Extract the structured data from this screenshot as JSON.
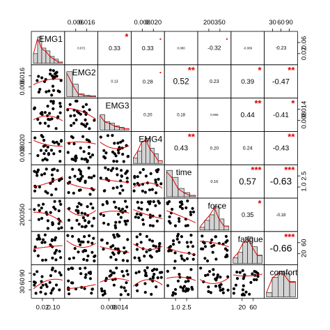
{
  "chart_data": {
    "type": "scatter-matrix",
    "variables": [
      "EMG1",
      "EMG2",
      "EMG3",
      "EMG4",
      "time",
      "force",
      "fatigue",
      "comfort"
    ],
    "top_axis": [
      {
        "var": 1,
        "ticks": [
          "0.006",
          "0.016"
        ],
        "side": "top"
      },
      {
        "var": 3,
        "ticks": [
          "0.008",
          "0.020"
        ],
        "side": "top"
      },
      {
        "var": 5,
        "ticks": [
          "200",
          "350"
        ],
        "side": "top"
      },
      {
        "var": 7,
        "ticks": [
          "30",
          "60",
          "90"
        ],
        "side": "top"
      }
    ],
    "bottom_axis": [
      {
        "var": 0,
        "ticks": [
          "0.02",
          "0.10"
        ]
      },
      {
        "var": 2,
        "ticks": [
          "0.008",
          "0.014"
        ]
      },
      {
        "var": 4,
        "ticks": [
          "1.0",
          "2.5"
        ]
      },
      {
        "var": 6,
        "ticks": [
          "20",
          "60"
        ]
      }
    ],
    "left_axis": [
      {
        "var": 1,
        "ticks": [
          "0.006",
          "0.016"
        ]
      },
      {
        "var": 3,
        "ticks": [
          "0.008",
          "0.020"
        ]
      },
      {
        "var": 5,
        "ticks": [
          "200",
          "350"
        ]
      },
      {
        "var": 7,
        "ticks": [
          "30",
          "60",
          "90"
        ]
      }
    ],
    "right_axis": [
      {
        "var": 0,
        "ticks": [
          "0.02",
          "0.06"
        ]
      },
      {
        "var": 2,
        "ticks": [
          "0.008",
          "0.014"
        ]
      },
      {
        "var": 4,
        "ticks": [
          "1.0",
          "2.5"
        ]
      },
      {
        "var": 6,
        "ticks": [
          "20",
          "60"
        ]
      }
    ],
    "correlations": [
      {
        "row": 0,
        "col": 1,
        "r": "0.072",
        "stars": ""
      },
      {
        "row": 0,
        "col": 2,
        "r": "0.33",
        "stars": "*"
      },
      {
        "row": 0,
        "col": 3,
        "r": "0.33",
        "stars": "."
      },
      {
        "row": 0,
        "col": 4,
        "r": "0.080",
        "stars": ""
      },
      {
        "row": 0,
        "col": 5,
        "r": "-0.32",
        "stars": "."
      },
      {
        "row": 0,
        "col": 6,
        "r": "-0.089",
        "stars": ""
      },
      {
        "row": 0,
        "col": 7,
        "r": "-0.23",
        "stars": ""
      },
      {
        "row": 1,
        "col": 2,
        "r": "0.13",
        "stars": ""
      },
      {
        "row": 1,
        "col": 3,
        "r": "0.28",
        "stars": "."
      },
      {
        "row": 1,
        "col": 4,
        "r": "0.52",
        "stars": "**"
      },
      {
        "row": 1,
        "col": 5,
        "r": "0.23",
        "stars": ""
      },
      {
        "row": 1,
        "col": 6,
        "r": "0.39",
        "stars": "*"
      },
      {
        "row": 1,
        "col": 7,
        "r": "-0.47",
        "stars": "**"
      },
      {
        "row": 2,
        "col": 3,
        "r": "0.20",
        "stars": ""
      },
      {
        "row": 2,
        "col": 4,
        "r": "0.18",
        "stars": ""
      },
      {
        "row": 2,
        "col": 5,
        "r": "0.066",
        "stars": ""
      },
      {
        "row": 2,
        "col": 6,
        "r": "0.44",
        "stars": "**"
      },
      {
        "row": 2,
        "col": 7,
        "r": "-0.41",
        "stars": "*"
      },
      {
        "row": 3,
        "col": 4,
        "r": "0.43",
        "stars": "**"
      },
      {
        "row": 3,
        "col": 5,
        "r": "0.20",
        "stars": ""
      },
      {
        "row": 3,
        "col": 6,
        "r": "0.24",
        "stars": ""
      },
      {
        "row": 3,
        "col": 7,
        "r": "-0.43",
        "stars": "**"
      },
      {
        "row": 4,
        "col": 5,
        "r": "0.16",
        "stars": ""
      },
      {
        "row": 4,
        "col": 6,
        "r": "0.57",
        "stars": "***"
      },
      {
        "row": 4,
        "col": 7,
        "r": "-0.63",
        "stars": "***"
      },
      {
        "row": 5,
        "col": 6,
        "r": "0.35",
        "stars": "*"
      },
      {
        "row": 5,
        "col": 7,
        "r": "-0.18",
        "stars": ""
      },
      {
        "row": 6,
        "col": 7,
        "r": "-0.66",
        "stars": "***"
      }
    ],
    "histograms": [
      [
        0.35,
        0.95,
        0.55,
        0.45,
        0.25,
        0.15,
        0.05
      ],
      [
        0.9,
        0.45,
        0.1,
        0.05,
        0.03
      ],
      [
        0.55,
        0.3,
        0.25,
        0.15,
        0.1,
        0.05
      ],
      [
        0.2,
        0.45,
        0.8,
        0.9,
        0.55,
        0.35,
        0.1
      ],
      [
        0.95,
        0.7,
        0.3,
        0.15,
        0.05
      ],
      [
        0.1,
        0.35,
        0.55,
        0.85,
        0.4,
        0.15
      ],
      [
        0.2,
        0.4,
        0.75,
        0.95,
        0.6,
        0.3
      ],
      [
        0.15,
        0.7,
        0.9,
        0.85,
        0.55
      ]
    ],
    "colors": {
      "points": "#000000",
      "smoother": "#e00000",
      "bars": "#d3d3d3",
      "stars": "#e00000"
    }
  }
}
